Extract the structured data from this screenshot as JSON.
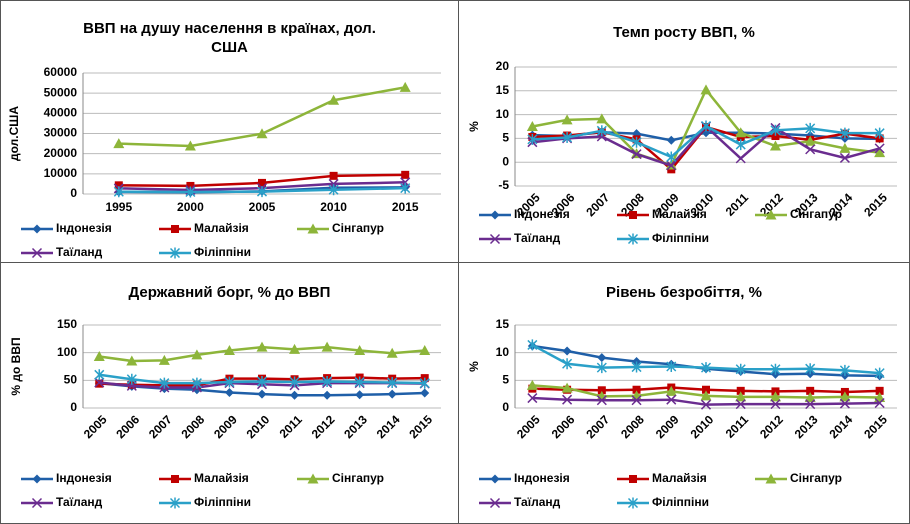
{
  "chart_data": [
    {
      "type": "line",
      "title": "ВВП на душу населення в країнах, дол. США",
      "ylabel": "дол.США",
      "categories": [
        "1995",
        "2000",
        "2005",
        "2010",
        "2015"
      ],
      "ylim": [
        0,
        60000
      ],
      "yticks": [
        0,
        10000,
        20000,
        30000,
        40000,
        50000,
        60000
      ],
      "grid": true,
      "legend": "bottom",
      "series": [
        {
          "name": "Індонезія",
          "color": "#1f5fa8",
          "marker": "diamond",
          "values": [
            1000,
            800,
            1300,
            3100,
            3300
          ]
        },
        {
          "name": "Малайзія",
          "color": "#c00000",
          "marker": "square",
          "values": [
            4300,
            4000,
            5500,
            9000,
            9500
          ]
        },
        {
          "name": "Сінгапур",
          "color": "#8db53a",
          "marker": "triangle",
          "values": [
            25000,
            23800,
            29900,
            46500,
            52900
          ]
        },
        {
          "name": "Таїланд",
          "color": "#6a2c8f",
          "marker": "x",
          "values": [
            2800,
            2000,
            2900,
            5000,
            5800
          ]
        },
        {
          "name": "Філіппіни",
          "color": "#2aa0c8",
          "marker": "star",
          "values": [
            1100,
            1000,
            1200,
            2100,
            2900
          ]
        }
      ]
    },
    {
      "type": "line",
      "title": "Темп росту ВВП, %",
      "ylabel": "%",
      "categories": [
        "2005",
        "2006",
        "2007",
        "2008",
        "2009",
        "2010",
        "2011",
        "2012",
        "2013",
        "2014",
        "2015"
      ],
      "ylim": [
        -5,
        20
      ],
      "yticks": [
        -5,
        0,
        5,
        10,
        15,
        20
      ],
      "grid": true,
      "legend": "bottom",
      "series": [
        {
          "name": "Індонезія",
          "color": "#1f5fa8",
          "marker": "diamond",
          "values": [
            5.7,
            5.5,
            6.3,
            6.0,
            4.6,
            6.2,
            6.2,
            6.0,
            5.6,
            5.0,
            4.9
          ]
        },
        {
          "name": "Малайзія",
          "color": "#c00000",
          "marker": "square",
          "values": [
            5.3,
            5.6,
            6.3,
            4.8,
            -1.5,
            7.4,
            5.3,
            5.5,
            4.7,
            6.0,
            5.0
          ]
        },
        {
          "name": "Сінгапур",
          "color": "#8db53a",
          "marker": "triangle",
          "values": [
            7.5,
            8.9,
            9.1,
            1.8,
            -0.6,
            15.2,
            6.2,
            3.4,
            4.4,
            2.9,
            2.0
          ]
        },
        {
          "name": "Таїланд",
          "color": "#6a2c8f",
          "marker": "x",
          "values": [
            4.2,
            5.0,
            5.4,
            1.7,
            -0.7,
            7.5,
            0.8,
            7.2,
            2.7,
            0.9,
            2.9
          ]
        },
        {
          "name": "Філіппіни",
          "color": "#2aa0c8",
          "marker": "star",
          "values": [
            4.8,
            5.2,
            6.6,
            4.2,
            1.1,
            7.6,
            3.7,
            6.7,
            7.1,
            6.1,
            6.1
          ]
        }
      ]
    },
    {
      "type": "line",
      "title": "Державний борг, % до ВВП",
      "ylabel": "% до ВВП",
      "categories": [
        "2005",
        "2006",
        "2007",
        "2008",
        "2009",
        "2010",
        "2011",
        "2012",
        "2013",
        "2014",
        "2015"
      ],
      "ylim": [
        0,
        150
      ],
      "yticks": [
        0,
        50,
        100,
        150
      ],
      "grid": true,
      "legend": "bottom",
      "series": [
        {
          "name": "Індонезія",
          "color": "#1f5fa8",
          "marker": "diamond",
          "values": [
            45,
            39,
            35,
            33,
            28,
            25,
            23,
            23,
            24,
            25,
            27
          ]
        },
        {
          "name": "Малайзія",
          "color": "#c00000",
          "marker": "square",
          "values": [
            44,
            42,
            41,
            41,
            53,
            53,
            52,
            54,
            55,
            53,
            54
          ]
        },
        {
          "name": "Сінгапур",
          "color": "#8db53a",
          "marker": "triangle",
          "values": [
            93,
            85,
            86,
            96,
            104,
            110,
            106,
            110,
            104,
            99,
            104
          ]
        },
        {
          "name": "Таїланд",
          "color": "#6a2c8f",
          "marker": "x",
          "values": [
            46,
            40,
            37,
            37,
            45,
            43,
            41,
            45,
            45,
            45,
            44
          ]
        },
        {
          "name": "Філіппіни",
          "color": "#2aa0c8",
          "marker": "star",
          "values": [
            60,
            52,
            45,
            45,
            47,
            48,
            47,
            48,
            47,
            46,
            45
          ]
        }
      ]
    },
    {
      "type": "line",
      "title": "Рівень безробіття, %",
      "ylabel": "%",
      "categories": [
        "2005",
        "2006",
        "2007",
        "2008",
        "2009",
        "2010",
        "2011",
        "2012",
        "2013",
        "2014",
        "2015"
      ],
      "ylim": [
        0,
        15
      ],
      "yticks": [
        0,
        5,
        10,
        15
      ],
      "grid": true,
      "legend": "bottom",
      "series": [
        {
          "name": "Індонезія",
          "color": "#1f5fa8",
          "marker": "diamond",
          "values": [
            11.2,
            10.3,
            9.1,
            8.4,
            7.9,
            7.1,
            6.6,
            6.1,
            6.2,
            5.9,
            5.8
          ]
        },
        {
          "name": "Малайзія",
          "color": "#c00000",
          "marker": "square",
          "values": [
            3.5,
            3.3,
            3.2,
            3.3,
            3.7,
            3.3,
            3.1,
            3.0,
            3.1,
            2.9,
            3.1
          ]
        },
        {
          "name": "Сінгапур",
          "color": "#8db53a",
          "marker": "triangle",
          "values": [
            4.1,
            3.6,
            2.1,
            2.2,
            3.0,
            2.2,
            2.0,
            2.0,
            1.9,
            2.0,
            1.9
          ]
        },
        {
          "name": "Таїланд",
          "color": "#6a2c8f",
          "marker": "x",
          "values": [
            1.8,
            1.5,
            1.4,
            1.4,
            1.5,
            0.6,
            0.7,
            0.7,
            0.7,
            0.8,
            0.9
          ]
        },
        {
          "name": "Філіппіни",
          "color": "#2aa0c8",
          "marker": "star",
          "values": [
            11.4,
            8.0,
            7.3,
            7.4,
            7.5,
            7.3,
            7.0,
            7.0,
            7.1,
            6.8,
            6.3
          ]
        }
      ]
    }
  ]
}
